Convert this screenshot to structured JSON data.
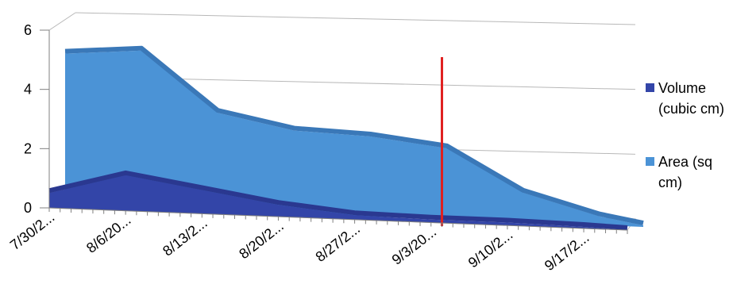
{
  "chart_data": {
    "type": "area",
    "categories": [
      "7/30/2...",
      "8/6/20...",
      "8/13/2...",
      "8/20/2...",
      "8/27/2...",
      "9/3/20...",
      "9/10/2...",
      "9/17/2..."
    ],
    "x": [
      0,
      7,
      14,
      21,
      28,
      35,
      42,
      49,
      53
    ],
    "series": [
      {
        "name": "Volume (cubic cm)",
        "legend_lines": [
          "Volume",
          "(cubic cm)"
        ],
        "color": "#3345a8",
        "values": [
          0.5,
          1.2,
          0.8,
          0.4,
          0.15,
          0.1,
          0.1,
          0.05,
          0.0
        ]
      },
      {
        "name": "Area (sq cm)",
        "legend_lines": [
          "Area (sq",
          "cm)"
        ],
        "color": "#4b93d6",
        "values": [
          5.1,
          5.3,
          3.3,
          2.8,
          2.7,
          2.4,
          1.0,
          0.3,
          0.05
        ]
      }
    ],
    "yticks": [
      "0",
      "2",
      "4",
      "6"
    ],
    "ylim": [
      0,
      6
    ],
    "marker_line": {
      "x": 36,
      "color": "#e02020"
    },
    "grid": true,
    "legend": "right"
  }
}
